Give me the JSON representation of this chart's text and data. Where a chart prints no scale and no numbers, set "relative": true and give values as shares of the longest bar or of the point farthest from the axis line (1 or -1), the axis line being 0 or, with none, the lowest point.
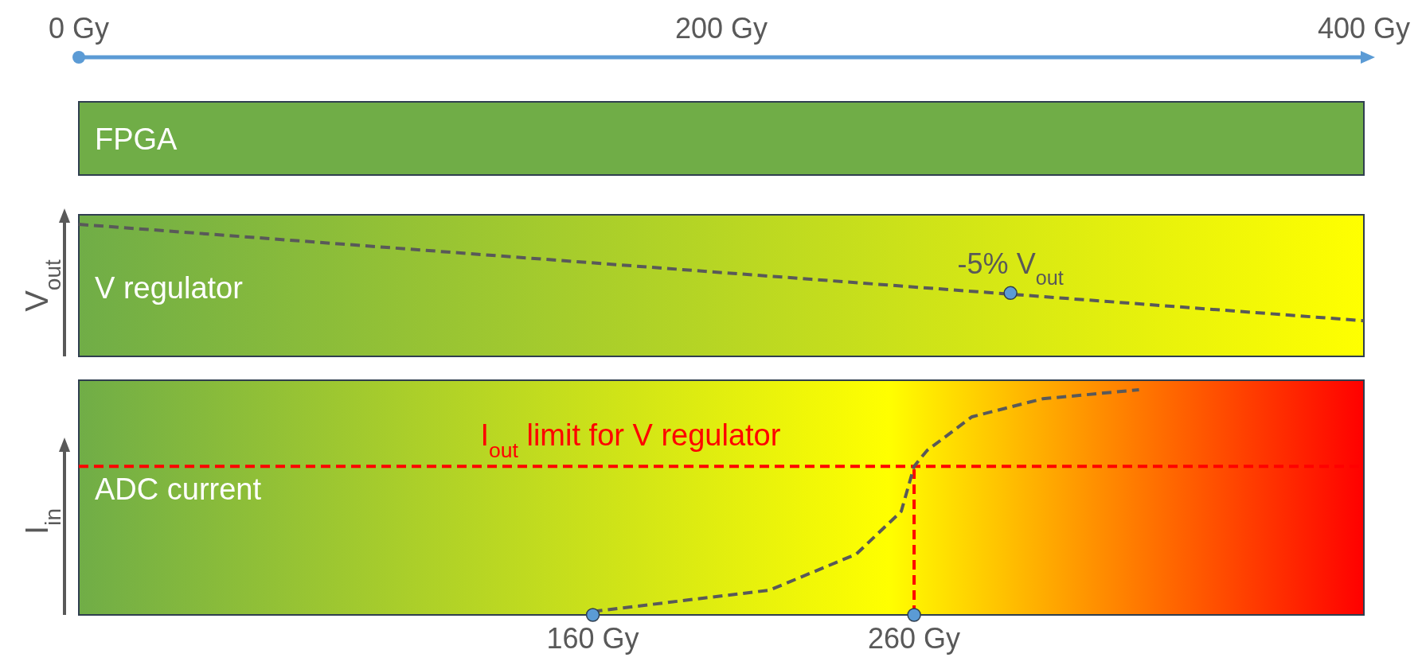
{
  "chart_data": [
    {
      "type": "other",
      "title": "FPGA"
    },
    {
      "type": "line",
      "title": "V regulator",
      "ylabel": "V$_{out}$",
      "relative": true,
      "xlim": [
        0,
        400
      ],
      "xticks": [
        {
          "value": 0,
          "label": "0 Gy"
        },
        {
          "value": 200,
          "label": "200 Gy"
        },
        {
          "value": 400,
          "label": "400 Gy"
        }
      ],
      "line_style": "dashed",
      "series": [
        {
          "type": "line",
          "color": "#595959",
          "x": [
            0,
            400
          ],
          "values": [
            1,
            0.27
          ]
        },
        {
          "type": "scatter",
          "color": "#5b9bd5",
          "x": [
            290
          ],
          "values": [
            0.48
          ]
        }
      ],
      "annotations": [
        {
          "text": "-5% V$_{out}$",
          "x": 290,
          "y": 0.48
        }
      ]
    },
    {
      "type": "line",
      "title": "ADC current",
      "ylabel": "I$_{in}$",
      "relative": true,
      "xlim": [
        0,
        400
      ],
      "xticks": [
        {
          "value": 160,
          "label": "160 Gy"
        },
        {
          "value": 260,
          "label": "260 Gy"
        }
      ],
      "line_style": "dashed",
      "series": [
        {
          "type": "line",
          "color": "#595959",
          "x": [
            160,
            215,
            242,
            256,
            260,
            264,
            278,
            300,
            330
          ],
          "values": [
            0.015,
            0.11,
            0.27,
            0.46,
            0.66,
            0.73,
            0.88,
            0.96,
            1
          ]
        },
        {
          "type": "scatter",
          "color": "#5b9bd5",
          "x": [
            160,
            260
          ],
          "values": [
            0,
            0
          ]
        }
      ],
      "ref_lines": [
        {
          "axis": "y",
          "value": 0.66,
          "label": "I$_{out}$ limit for V regulator",
          "color": "#ff0000",
          "line_style": "dashed"
        },
        {
          "axis": "x",
          "value": 260,
          "color": "#ff0000",
          "line_style": "dashed"
        }
      ]
    }
  ]
}
